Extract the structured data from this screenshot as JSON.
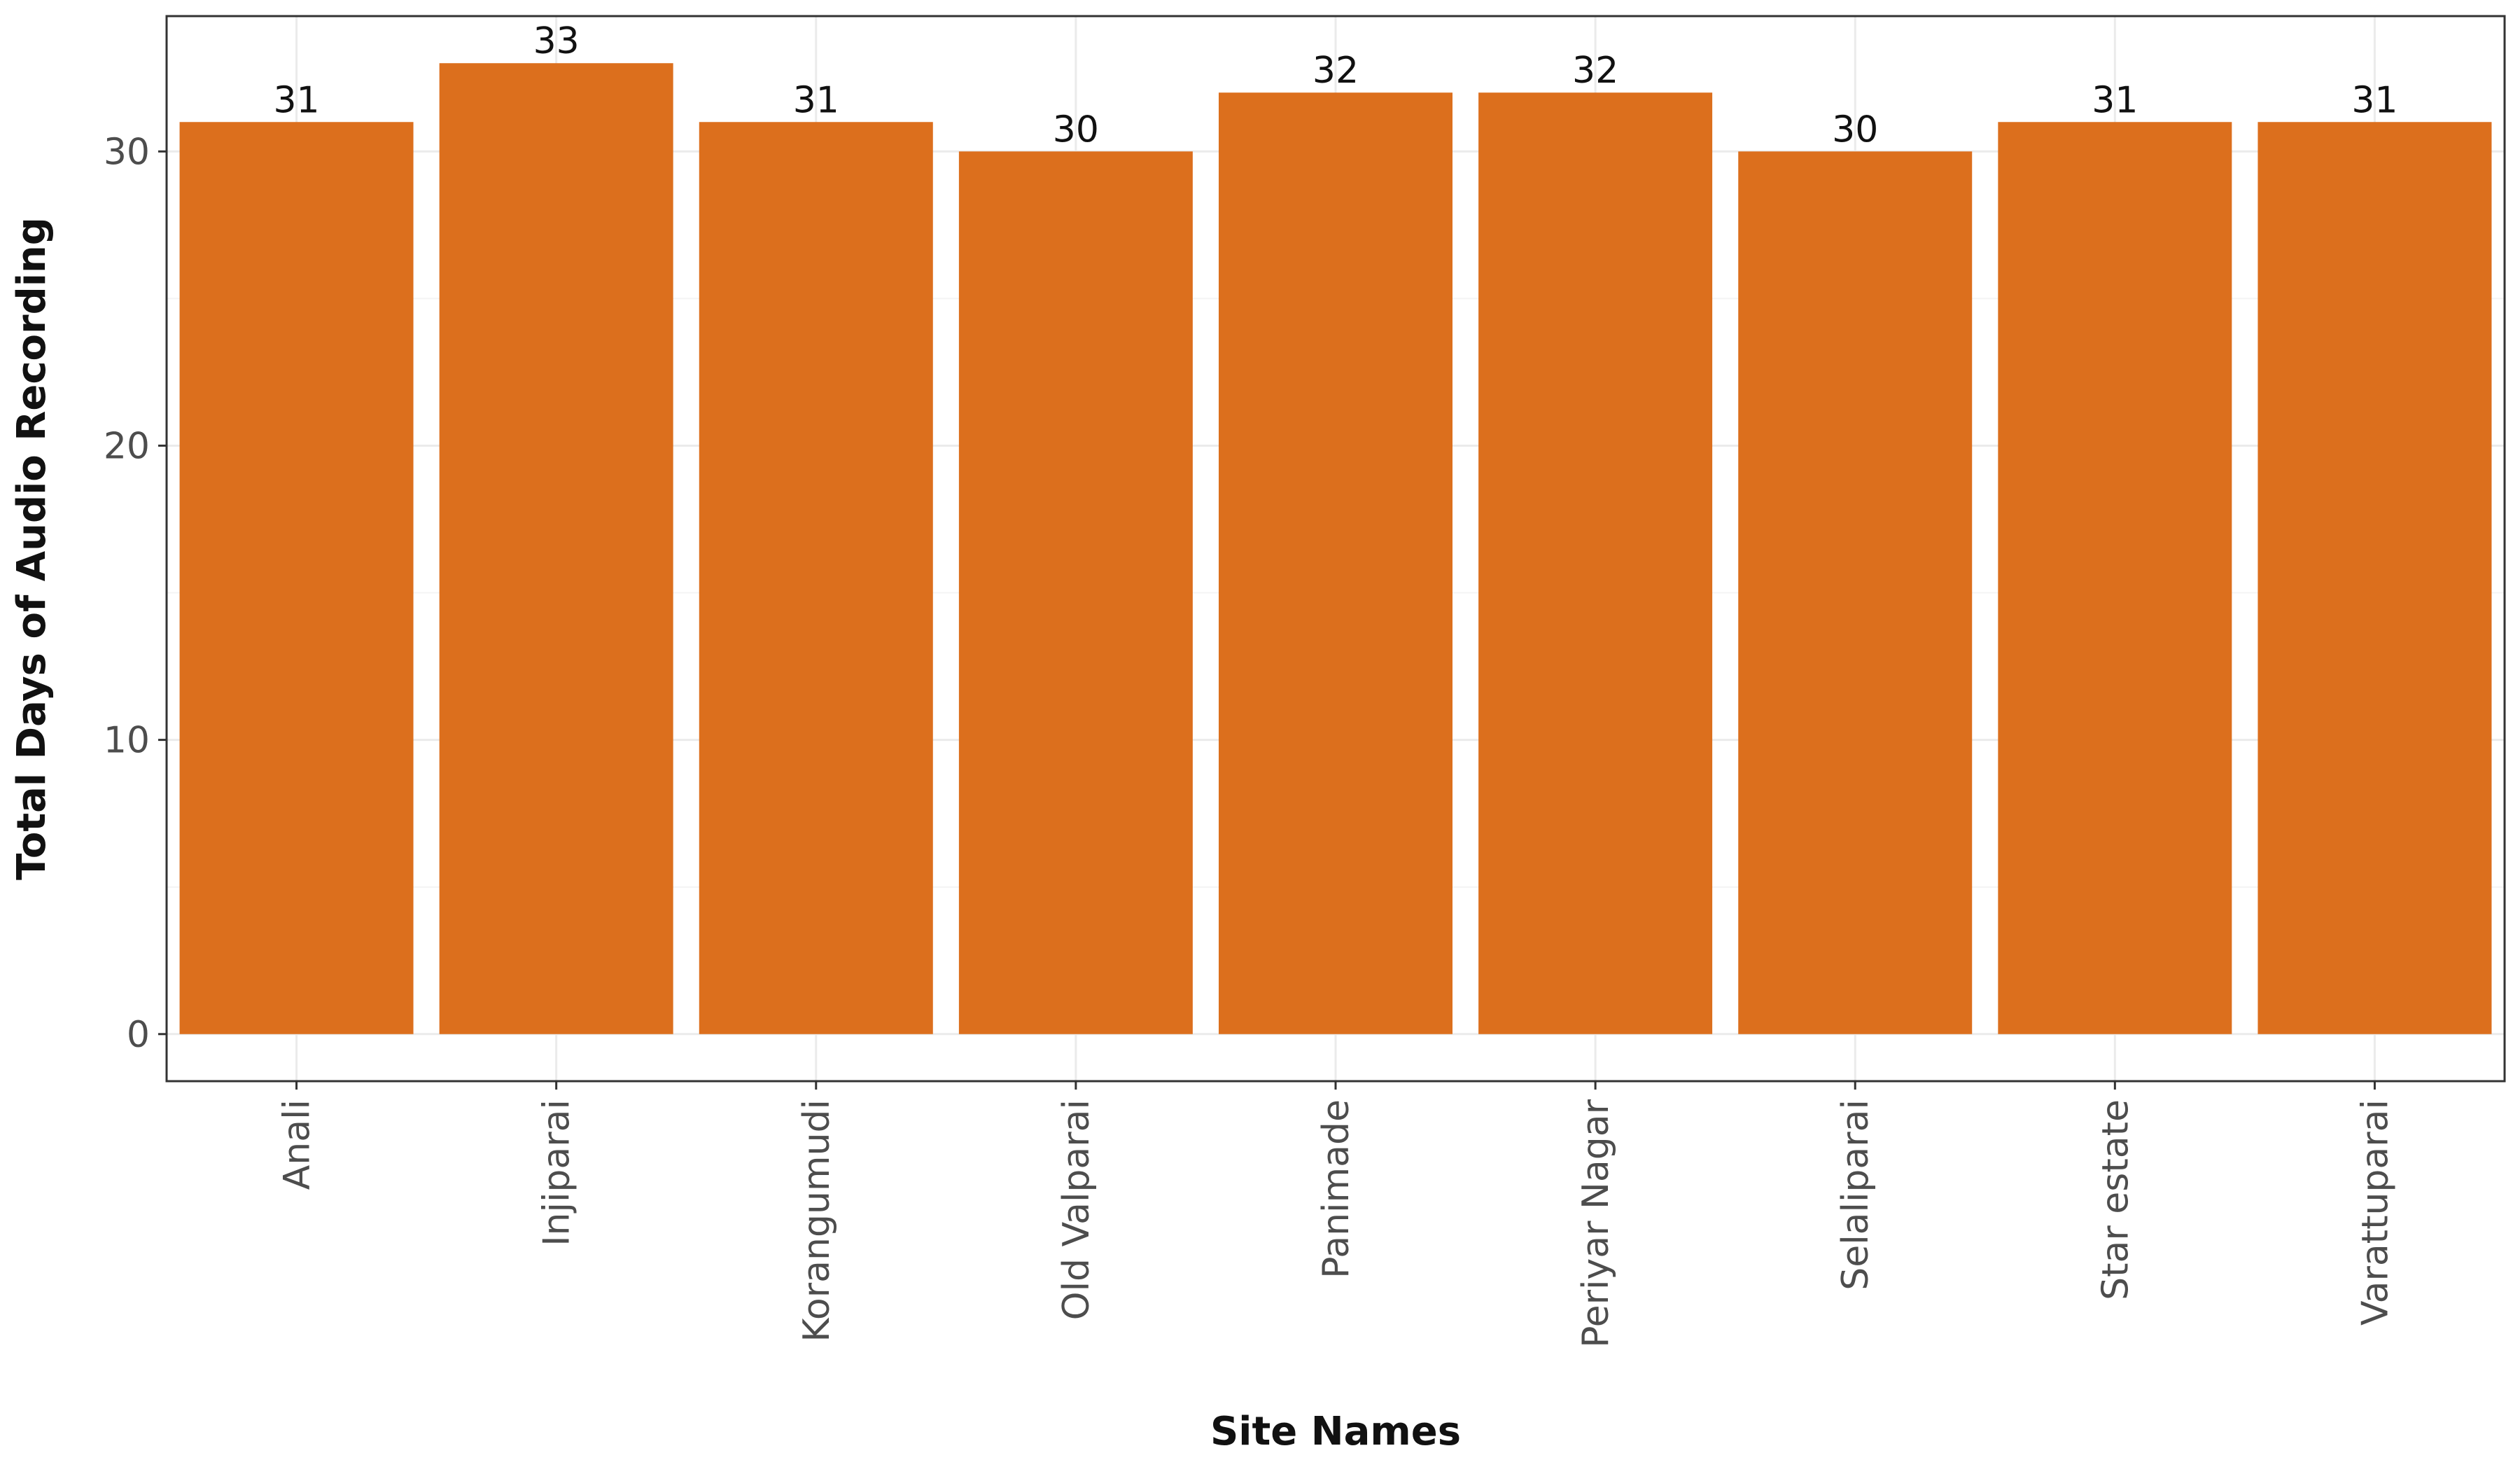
{
  "colors": {
    "bar": "#dc6f1d",
    "grid_major": "#ebebeb",
    "grid_minor": "#f4f4f4",
    "panel_border": "#333333",
    "tick_mark": "#333333"
  },
  "chart_data": {
    "type": "bar",
    "categories": [
      "Anali",
      "Injiparai",
      "Korangumudi",
      "Old Valparai",
      "Panimade",
      "Periyar Nagar",
      "Selaliparai",
      "Star estate",
      "Varattuparai"
    ],
    "values": [
      31,
      33,
      31,
      30,
      32,
      32,
      30,
      31,
      31
    ],
    "data_labels": [
      "31",
      "33",
      "31",
      "30",
      "32",
      "32",
      "30",
      "31",
      "31"
    ],
    "xlabel": "Site Names",
    "ylabel": "Total Days of Audio Recording",
    "ylim": [
      -1.6,
      34.6
    ],
    "yticks": [
      0,
      10,
      20,
      30
    ],
    "ytick_labels": [
      "0",
      "10",
      "20",
      "30"
    ],
    "x_tick_label_rotation": "vertical",
    "grid": true,
    "legend": "none"
  }
}
